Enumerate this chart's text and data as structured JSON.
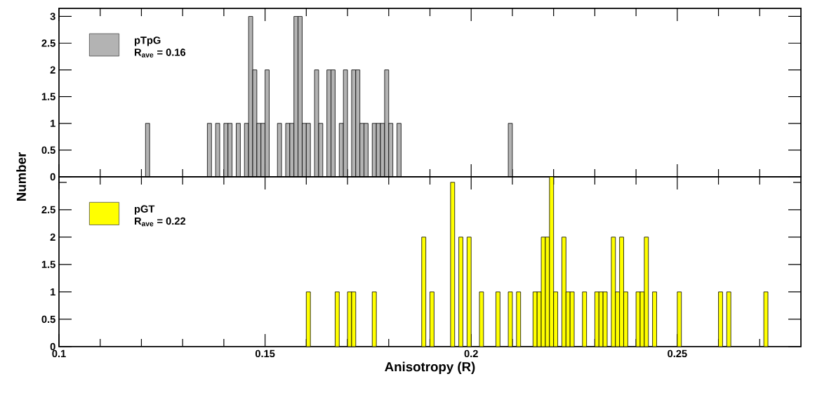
{
  "chart_data": [
    {
      "type": "histogram",
      "ylabel": "Number",
      "legend": "top left",
      "tick_labels": "y",
      "annotations": [
        "R$_{ave}$ = 0.16"
      ],
      "bins": [
        0.1,
        0.101,
        0.102,
        0.103,
        0.104,
        0.105,
        0.106,
        0.107,
        0.108,
        0.109,
        0.11,
        0.111,
        0.112,
        0.113,
        0.114,
        0.115,
        0.116,
        0.117,
        0.118,
        0.119,
        0.12,
        0.121,
        0.122,
        0.123,
        0.124,
        0.125,
        0.126,
        0.127,
        0.128,
        0.129,
        0.13,
        0.131,
        0.132,
        0.133,
        0.134,
        0.135,
        0.136,
        0.137,
        0.138,
        0.139,
        0.14,
        0.141,
        0.142,
        0.143,
        0.144,
        0.145,
        0.146,
        0.147,
        0.148,
        0.149,
        0.15,
        0.151,
        0.152,
        0.153,
        0.154,
        0.155,
        0.156,
        0.157,
        0.158,
        0.159,
        0.16,
        0.161,
        0.162,
        0.163,
        0.164,
        0.165,
        0.166,
        0.167,
        0.168,
        0.169,
        0.17,
        0.171,
        0.172,
        0.173,
        0.174,
        0.175,
        0.176,
        0.177,
        0.178,
        0.179,
        0.18,
        0.181,
        0.182,
        0.183,
        0.184,
        0.185,
        0.186,
        0.187,
        0.188,
        0.189,
        0.19,
        0.191,
        0.192,
        0.193,
        0.194,
        0.195,
        0.196,
        0.197,
        0.198,
        0.199,
        0.2,
        0.201,
        0.202,
        0.203,
        0.204,
        0.205,
        0.206,
        0.207,
        0.208,
        0.209,
        0.21,
        0.211,
        0.212,
        0.213,
        0.214,
        0.215,
        0.216,
        0.217,
        0.218,
        0.219,
        0.22,
        0.221,
        0.222,
        0.223,
        0.224,
        0.225,
        0.226,
        0.227,
        0.228,
        0.229,
        0.23,
        0.231,
        0.232,
        0.233,
        0.234,
        0.235,
        0.236,
        0.237,
        0.238,
        0.239,
        0.24,
        0.241,
        0.242,
        0.243,
        0.244,
        0.245,
        0.246,
        0.247,
        0.248,
        0.249,
        0.25,
        0.251,
        0.252,
        0.253,
        0.254,
        0.255,
        0.256,
        0.257,
        0.258,
        0.259,
        0.26,
        0.261,
        0.262,
        0.263,
        0.264,
        0.265,
        0.266,
        0.267,
        0.268,
        0.269,
        0.27,
        0.271,
        0.272,
        0.273,
        0.274,
        0.275,
        0.276,
        0.277,
        0.278,
        0.279,
        0.28
      ],
      "series": [
        {
          "name": "pTpG",
          "color": "#b3b3b3",
          "values": [
            0,
            0,
            0,
            0,
            0,
            0,
            0,
            0,
            0,
            0,
            0,
            0,
            0,
            0,
            0,
            0,
            0,
            0,
            0,
            0,
            0,
            1,
            0,
            0,
            0,
            0,
            0,
            0,
            0,
            0,
            0,
            0,
            0,
            0,
            0,
            0,
            1,
            0,
            1,
            0,
            1,
            1,
            0,
            1,
            0,
            1,
            3,
            2,
            1,
            1,
            2,
            0,
            0,
            1,
            0,
            1,
            1,
            3,
            3,
            1,
            1,
            0,
            2,
            1,
            0,
            2,
            2,
            0,
            1,
            2,
            0,
            2,
            2,
            1,
            1,
            0,
            1,
            1,
            1,
            2,
            1,
            0,
            1,
            0,
            0,
            0,
            0,
            0,
            0,
            0,
            0,
            0,
            0,
            0,
            0,
            0,
            0,
            0,
            0,
            0,
            0,
            0,
            0,
            0,
            0,
            0,
            0,
            0,
            0,
            1,
            0,
            0,
            0,
            0,
            0,
            0,
            0,
            0,
            0,
            0,
            0,
            0,
            0,
            0,
            0,
            0,
            0,
            0,
            0,
            0,
            0,
            0,
            0,
            0,
            0,
            0,
            0,
            0,
            0,
            0,
            0,
            0,
            0,
            0,
            0,
            0,
            0,
            0,
            0,
            0,
            0,
            0,
            0,
            0,
            0,
            0,
            0,
            0,
            0,
            0,
            0,
            0,
            0,
            0,
            0,
            0,
            0,
            0,
            0,
            0,
            0,
            0,
            0,
            0,
            0,
            0,
            0,
            0,
            0,
            0
          ]
        }
      ],
      "xlim": [
        0.1,
        0.28
      ],
      "xticks": [
        0.1,
        {
          "value": 0.11,
          "label": null
        },
        {
          "value": 0.12,
          "label": null
        },
        {
          "value": 0.13,
          "label": null
        },
        {
          "value": 0.14,
          "label": null
        },
        0.15,
        {
          "value": 0.16,
          "label": null
        },
        {
          "value": 0.17,
          "label": null
        },
        {
          "value": 0.18,
          "label": null
        },
        {
          "value": 0.19,
          "label": null
        },
        0.2,
        {
          "value": 0.21,
          "label": null
        },
        {
          "value": 0.22,
          "label": null
        },
        {
          "value": 0.23,
          "label": null
        },
        {
          "value": 0.24,
          "label": null
        },
        0.25,
        {
          "value": 0.26,
          "label": null
        },
        {
          "value": 0.27,
          "label": null
        }
      ],
      "ylim": [
        0,
        3.15
      ],
      "yticks": [
        0,
        0.5,
        1,
        1.5,
        2,
        2.5,
        3
      ]
    },
    {
      "type": "histogram",
      "xlabel": "Anisotropy (R)",
      "legend": "top left",
      "annotations": [
        "R$_{ave}$ = 0.22"
      ],
      "bins": [
        0.1,
        0.101,
        0.102,
        0.103,
        0.104,
        0.105,
        0.106,
        0.107,
        0.108,
        0.109,
        0.11,
        0.111,
        0.112,
        0.113,
        0.114,
        0.115,
        0.116,
        0.117,
        0.118,
        0.119,
        0.12,
        0.121,
        0.122,
        0.123,
        0.124,
        0.125,
        0.126,
        0.127,
        0.128,
        0.129,
        0.13,
        0.131,
        0.132,
        0.133,
        0.134,
        0.135,
        0.136,
        0.137,
        0.138,
        0.139,
        0.14,
        0.141,
        0.142,
        0.143,
        0.144,
        0.145,
        0.146,
        0.147,
        0.148,
        0.149,
        0.15,
        0.151,
        0.152,
        0.153,
        0.154,
        0.155,
        0.156,
        0.157,
        0.158,
        0.159,
        0.16,
        0.161,
        0.162,
        0.163,
        0.164,
        0.165,
        0.166,
        0.167,
        0.168,
        0.169,
        0.17,
        0.171,
        0.172,
        0.173,
        0.174,
        0.175,
        0.176,
        0.177,
        0.178,
        0.179,
        0.18,
        0.181,
        0.182,
        0.183,
        0.184,
        0.185,
        0.186,
        0.187,
        0.188,
        0.189,
        0.19,
        0.191,
        0.192,
        0.193,
        0.194,
        0.195,
        0.196,
        0.197,
        0.198,
        0.199,
        0.2,
        0.201,
        0.202,
        0.203,
        0.204,
        0.205,
        0.206,
        0.207,
        0.208,
        0.209,
        0.21,
        0.211,
        0.212,
        0.213,
        0.214,
        0.215,
        0.216,
        0.217,
        0.218,
        0.219,
        0.22,
        0.221,
        0.222,
        0.223,
        0.224,
        0.225,
        0.226,
        0.227,
        0.228,
        0.229,
        0.23,
        0.231,
        0.232,
        0.233,
        0.234,
        0.235,
        0.236,
        0.237,
        0.238,
        0.239,
        0.24,
        0.241,
        0.242,
        0.243,
        0.244,
        0.245,
        0.246,
        0.247,
        0.248,
        0.249,
        0.25,
        0.251,
        0.252,
        0.253,
        0.254,
        0.255,
        0.256,
        0.257,
        0.258,
        0.259,
        0.26,
        0.261,
        0.262,
        0.263,
        0.264,
        0.265,
        0.266,
        0.267,
        0.268,
        0.269,
        0.27,
        0.271,
        0.272,
        0.273,
        0.274,
        0.275,
        0.276,
        0.277,
        0.278,
        0.279,
        0.28
      ],
      "series": [
        {
          "name": "pGT",
          "color": "#ffff00",
          "values": [
            0,
            0,
            0,
            0,
            0,
            0,
            0,
            0,
            0,
            0,
            0,
            0,
            0,
            0,
            0,
            0,
            0,
            0,
            0,
            0,
            0,
            0,
            0,
            0,
            0,
            0,
            0,
            0,
            0,
            0,
            0,
            0,
            0,
            0,
            0,
            0,
            0,
            0,
            0,
            0,
            0,
            0,
            0,
            0,
            0,
            0,
            0,
            0,
            0,
            0,
            0,
            0,
            0,
            0,
            0,
            0,
            0,
            0,
            0,
            0,
            1,
            0,
            0,
            0,
            0,
            0,
            0,
            1,
            0,
            0,
            1,
            1,
            0,
            0,
            0,
            0,
            1,
            0,
            0,
            0,
            0,
            0,
            0,
            0,
            0,
            0,
            0,
            0,
            2,
            0,
            1,
            0,
            0,
            0,
            0,
            3,
            0,
            2,
            0,
            2,
            0,
            0,
            1,
            0,
            0,
            0,
            1,
            0,
            0,
            1,
            0,
            1,
            0,
            0,
            0,
            1,
            1,
            2,
            2,
            3.1,
            1,
            0,
            2,
            1,
            1,
            0,
            0,
            1,
            0,
            0,
            1,
            1,
            1,
            0,
            2,
            1,
            2,
            1,
            0,
            0,
            1,
            1,
            2,
            0,
            1,
            0,
            0,
            0,
            0,
            0,
            1,
            0,
            0,
            0,
            0,
            0,
            0,
            0,
            0,
            0,
            1,
            0,
            1,
            0,
            0,
            0,
            0,
            0,
            0,
            0,
            0,
            1,
            0,
            0,
            0,
            0,
            0,
            0,
            0,
            0
          ]
        }
      ],
      "xlim": [
        0.1,
        0.28
      ],
      "xticks": [
        0.1,
        {
          "value": 0.11,
          "label": null
        },
        {
          "value": 0.12,
          "label": null
        },
        {
          "value": 0.13,
          "label": null
        },
        {
          "value": 0.14,
          "label": null
        },
        0.15,
        {
          "value": 0.16,
          "label": null
        },
        {
          "value": 0.17,
          "label": null
        },
        {
          "value": 0.18,
          "label": null
        },
        {
          "value": 0.19,
          "label": null
        },
        0.2,
        {
          "value": 0.21,
          "label": null
        },
        {
          "value": 0.22,
          "label": null
        },
        {
          "value": 0.23,
          "label": null
        },
        {
          "value": 0.24,
          "label": null
        },
        0.25,
        {
          "value": 0.26,
          "label": null
        },
        {
          "value": 0.27,
          "label": null
        }
      ],
      "ylim": [
        0,
        3.1
      ],
      "yticks": [
        0,
        0.5,
        1,
        1.5,
        2,
        2.5,
        {
          "value": 3,
          "label": null
        }
      ]
    }
  ]
}
